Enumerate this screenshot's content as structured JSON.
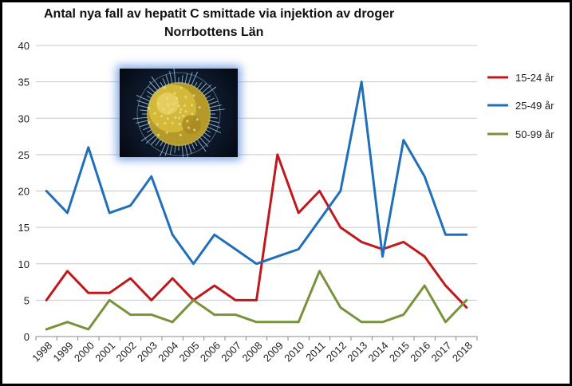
{
  "chart_data": {
    "type": "line",
    "title": "Antal nya fall av hepatit C smittade via injektion av droger",
    "subtitle": "Norrbottens Län",
    "xlabel": "",
    "ylabel": "",
    "categories": [
      "1998",
      "1999",
      "2000",
      "2001",
      "2002",
      "2003",
      "2004",
      "2005",
      "2006",
      "2007",
      "2008",
      "2009",
      "2010",
      "2011",
      "2012",
      "2013",
      "2014",
      "2015",
      "2016",
      "2017",
      "2018"
    ],
    "ylim": [
      0,
      40
    ],
    "yticks": [
      0,
      5,
      10,
      15,
      20,
      25,
      30,
      35,
      40
    ],
    "grid": true,
    "legend_position": "right",
    "series": [
      {
        "name": "15-24 år",
        "color": "#c0181b",
        "values": [
          5,
          9,
          6,
          6,
          8,
          5,
          8,
          5,
          7,
          5,
          5,
          25,
          17,
          20,
          15,
          13,
          12,
          13,
          11,
          7,
          4
        ]
      },
      {
        "name": "25-49 år",
        "color": "#1f6fba",
        "values": [
          20,
          17,
          26,
          17,
          18,
          22,
          14,
          10,
          14,
          12,
          10,
          11,
          12,
          16,
          20,
          35,
          11,
          27,
          22,
          14,
          14
        ]
      },
      {
        "name": "50-99 år",
        "color": "#77933c",
        "values": [
          1,
          2,
          1,
          5,
          3,
          3,
          2,
          5,
          3,
          3,
          2,
          2,
          2,
          9,
          4,
          2,
          2,
          3,
          7,
          2,
          5
        ]
      }
    ]
  },
  "image": {
    "icon": "virus-micrograph"
  }
}
